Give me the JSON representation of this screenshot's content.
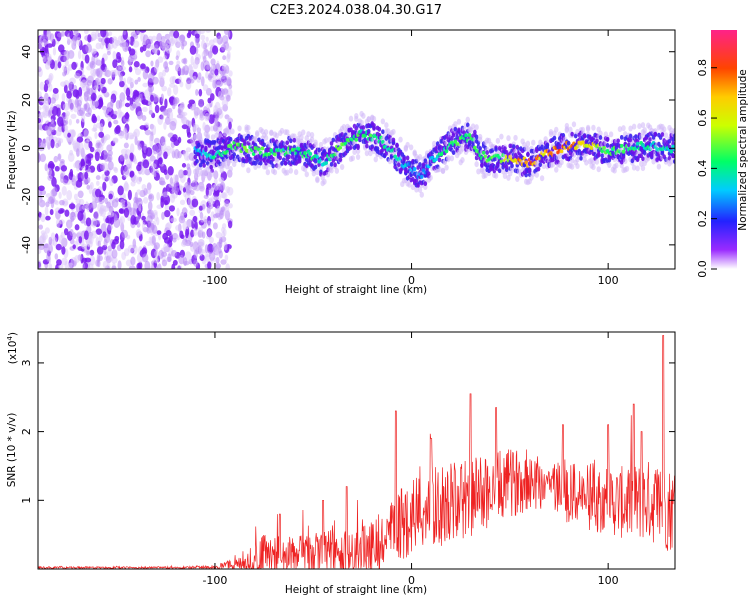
{
  "title": "C2E3.2024.038.04.30.G17",
  "chart_data": [
    {
      "type": "heatmap",
      "xlabel": "Height of straight line (km)",
      "ylabel": "Frequency (Hz)",
      "xlim": [
        -190,
        134
      ],
      "ylim": [
        -50,
        49
      ],
      "xticks": [
        -100,
        0,
        100
      ],
      "yticks": [
        -40,
        -20,
        0,
        20,
        40
      ],
      "colorbar": {
        "label": "Normalized spectral amplitude",
        "range": [
          0.0,
          0.95
        ],
        "ticks": [
          0.0,
          0.2,
          0.4,
          0.6,
          0.8
        ],
        "tick_labels": [
          "0.0",
          "0.2",
          "0.4",
          "0.6",
          "0.8"
        ]
      },
      "noise_region_x": [
        -190,
        -92
      ],
      "ridge": {
        "x": [
          -110,
          -100,
          -90,
          -80,
          -70,
          -60,
          -50,
          -45,
          -40,
          -30,
          -25,
          -20,
          -15,
          -10,
          -5,
          0,
          5,
          10,
          15,
          20,
          25,
          30,
          35,
          40,
          45,
          50,
          55,
          60,
          65,
          70,
          75,
          80,
          90,
          100,
          110,
          120,
          134
        ],
        "y": [
          -1,
          -3,
          1,
          -1,
          -2,
          -1,
          -3,
          -6,
          -2,
          4,
          6,
          5,
          3,
          -1,
          -6,
          -8,
          -12,
          -5,
          -2,
          2,
          3,
          5,
          -3,
          -4,
          -4,
          -4,
          -5,
          -6,
          -4,
          -2,
          0,
          1,
          1,
          -1,
          0,
          1,
          0
        ],
        "amplitude": [
          0.35,
          0.45,
          0.55,
          0.55,
          0.5,
          0.5,
          0.5,
          0.45,
          0.55,
          0.55,
          0.5,
          0.5,
          0.45,
          0.45,
          0.4,
          0.35,
          0.3,
          0.35,
          0.45,
          0.5,
          0.55,
          0.6,
          0.55,
          0.55,
          0.55,
          0.75,
          0.9,
          0.95,
          0.85,
          0.8,
          0.85,
          0.85,
          0.75,
          0.55,
          0.5,
          0.45,
          0.4
        ]
      }
    },
    {
      "type": "line",
      "xlabel": "Height of straight line (km)",
      "ylabel": "SNR (10 * v/v)",
      "scale_label": "(x10",
      "scale_exponent": "4",
      "scale_close": ")",
      "xlim": [
        -190,
        134
      ],
      "ylim": [
        0,
        3.45
      ],
      "xticks": [
        -100,
        0,
        100
      ],
      "yticks": [
        1,
        2,
        3
      ],
      "color": "#ee2222",
      "envelope": {
        "x": [
          -190,
          -120,
          -100,
          -90,
          -80,
          -75,
          -70,
          -60,
          -50,
          -40,
          -30,
          -20,
          -10,
          0,
          10,
          20,
          30,
          40,
          50,
          60,
          70,
          80,
          90,
          100,
          110,
          120,
          130,
          134
        ],
        "base": [
          0.02,
          0.02,
          0.03,
          0.06,
          0.12,
          0.18,
          0.15,
          0.18,
          0.2,
          0.22,
          0.22,
          0.3,
          0.5,
          0.8,
          0.9,
          0.95,
          1.05,
          1.15,
          1.25,
          1.3,
          1.25,
          1.1,
          1.05,
          1.0,
          0.95,
          1.0,
          0.9,
          0.85
        ],
        "amp": [
          0.015,
          0.015,
          0.03,
          0.1,
          0.25,
          0.35,
          0.3,
          0.3,
          0.35,
          0.35,
          0.35,
          0.4,
          0.5,
          0.6,
          0.6,
          0.6,
          0.6,
          0.55,
          0.5,
          0.45,
          0.4,
          0.45,
          0.5,
          0.5,
          0.55,
          0.6,
          0.65,
          0.6
        ]
      },
      "spikes": [
        [
          -67,
          0.8
        ],
        [
          -45,
          1.0
        ],
        [
          -33,
          1.2
        ],
        [
          -8,
          2.3
        ],
        [
          10,
          1.9
        ],
        [
          30,
          2.55
        ],
        [
          43,
          2.35
        ],
        [
          77,
          2.1
        ],
        [
          100,
          2.1
        ],
        [
          113,
          2.4
        ],
        [
          117,
          2.0
        ],
        [
          128,
          3.4
        ]
      ]
    }
  ]
}
